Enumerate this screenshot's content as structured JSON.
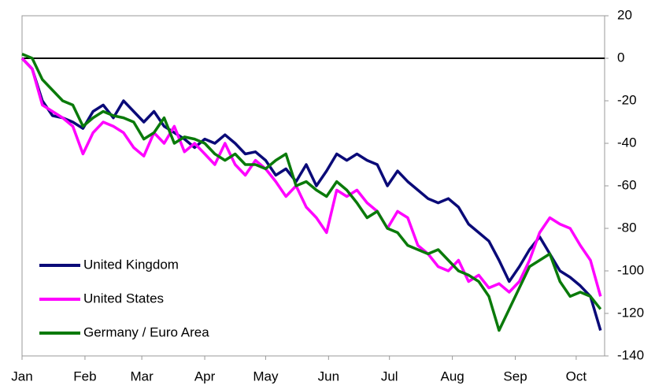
{
  "chart_data": {
    "type": "line",
    "x": [
      0,
      5,
      10,
      15,
      20,
      25,
      30,
      35,
      40,
      45,
      50,
      55,
      60,
      65,
      70,
      75,
      80,
      85,
      90,
      95,
      100,
      105,
      110,
      115,
      120,
      125,
      130,
      135,
      140,
      145,
      150,
      155,
      160,
      165,
      170,
      175,
      180,
      185,
      190,
      195,
      200,
      205,
      210,
      215,
      220,
      225,
      230,
      235,
      240,
      245,
      250,
      255,
      260,
      265,
      270,
      275,
      280,
      285
    ],
    "xlim": [
      0,
      287
    ],
    "xticks": [
      {
        "value": 0,
        "label": "Jan"
      },
      {
        "value": 31,
        "label": "Feb"
      },
      {
        "value": 59,
        "label": "Mar"
      },
      {
        "value": 90,
        "label": "Apr"
      },
      {
        "value": 120,
        "label": "May"
      },
      {
        "value": 151,
        "label": "Jun"
      },
      {
        "value": 181,
        "label": "Jul"
      },
      {
        "value": 212,
        "label": "Aug"
      },
      {
        "value": 243,
        "label": "Sep"
      },
      {
        "value": 273,
        "label": "Oct"
      }
    ],
    "ylim": [
      -140,
      20
    ],
    "yticks": [
      20,
      0,
      -20,
      -40,
      -60,
      -80,
      -100,
      -120,
      -140
    ],
    "zero_line": true,
    "legend": "lower left",
    "series": [
      {
        "name": "United Kingdom",
        "color": "#0a0a78",
        "values": [
          0,
          -5,
          -20,
          -27,
          -28,
          -30,
          -33,
          -25,
          -22,
          -28,
          -20,
          -25,
          -30,
          -25,
          -32,
          -35,
          -38,
          -42,
          -38,
          -40,
          -36,
          -40,
          -45,
          -44,
          -48,
          -55,
          -52,
          -58,
          -50,
          -60,
          -53,
          -45,
          -48,
          -45,
          -48,
          -50,
          -60,
          -53,
          -58,
          -62,
          -66,
          -68,
          -66,
          -70,
          -78,
          -82,
          -86,
          -95,
          -105,
          -98,
          -90,
          -84,
          -92,
          -100,
          -103,
          -107,
          -112,
          -128
        ]
      },
      {
        "name": "United States",
        "color": "#ff00ff",
        "values": [
          0,
          -5,
          -22,
          -25,
          -28,
          -32,
          -45,
          -35,
          -30,
          -32,
          -35,
          -42,
          -46,
          -35,
          -40,
          -32,
          -44,
          -40,
          -45,
          -50,
          -40,
          -50,
          -55,
          -48,
          -52,
          -58,
          -65,
          -60,
          -70,
          -75,
          -82,
          -62,
          -65,
          -62,
          -68,
          -72,
          -80,
          -72,
          -75,
          -88,
          -92,
          -98,
          -100,
          -95,
          -105,
          -102,
          -108,
          -106,
          -110,
          -105,
          -95,
          -82,
          -75,
          -78,
          -80,
          -88,
          -95,
          -112
        ]
      },
      {
        "name": "Germany / Euro Area",
        "color": "#0a7a0a",
        "values": [
          2,
          0,
          -10,
          -15,
          -20,
          -22,
          -32,
          -28,
          -25,
          -27,
          -28,
          -30,
          -38,
          -35,
          -28,
          -40,
          -37,
          -38,
          -40,
          -45,
          -48,
          -45,
          -50,
          -50,
          -52,
          -48,
          -45,
          -60,
          -58,
          -62,
          -65,
          -58,
          -62,
          -68,
          -75,
          -72,
          -80,
          -82,
          -88,
          -90,
          -92,
          -90,
          -95,
          -100,
          -102,
          -105,
          -112,
          -128,
          -118,
          -108,
          -98,
          -95,
          -92,
          -105,
          -112,
          -110,
          -112,
          -118
        ]
      }
    ]
  }
}
